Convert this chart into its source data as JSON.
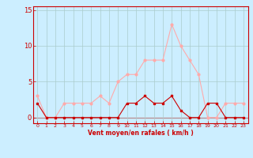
{
  "hours": [
    0,
    1,
    2,
    3,
    4,
    5,
    6,
    7,
    8,
    9,
    10,
    11,
    12,
    13,
    14,
    15,
    16,
    17,
    18,
    19,
    20,
    21,
    22,
    23
  ],
  "avg_wind": [
    2,
    0,
    0,
    0,
    0,
    0,
    0,
    0,
    0,
    0,
    2,
    2,
    3,
    2,
    2,
    3,
    1,
    0,
    0,
    2,
    2,
    0,
    0,
    0
  ],
  "gusts": [
    3,
    0,
    0,
    2,
    2,
    2,
    2,
    3,
    2,
    5,
    6,
    6,
    8,
    8,
    8,
    13,
    10,
    8,
    6,
    0,
    0,
    2,
    2,
    2
  ],
  "avg_color": "#cc0000",
  "gust_color": "#ffaaaa",
  "bg_color": "#cceeff",
  "grid_color": "#aacccc",
  "axis_color": "#cc0000",
  "xlabel": "Vent moyen/en rafales ( km/h )",
  "ylabel_ticks": [
    0,
    5,
    10,
    15
  ],
  "xlim": [
    -0.5,
    23.5
  ],
  "ylim": [
    -0.8,
    15.5
  ],
  "marker_size_avg": 2,
  "marker_size_gust": 2,
  "line_width": 0.8
}
